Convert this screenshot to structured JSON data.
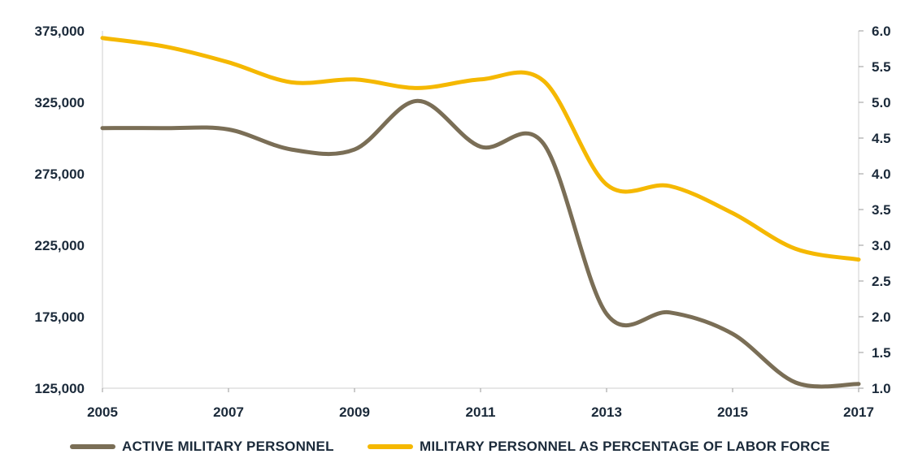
{
  "chart_data": {
    "type": "line",
    "x": [
      2005,
      2006,
      2007,
      2008,
      2009,
      2010,
      2011,
      2012,
      2013,
      2014,
      2015,
      2016,
      2017
    ],
    "x_tick_labels": [
      "2005",
      "2007",
      "2009",
      "2011",
      "2013",
      "2015",
      "2017"
    ],
    "y_left_tick_labels": [
      "375,000",
      "325,000",
      "275,000",
      "225,000",
      "175,000",
      "125,000"
    ],
    "y_left_ticks": [
      375000,
      325000,
      275000,
      225000,
      175000,
      125000
    ],
    "y_right_tick_labels": [
      "6.0",
      "5.5",
      "5.0",
      "4.5",
      "4.0",
      "3.5",
      "3.0",
      "2.5",
      "2.0",
      "1.5",
      "1.0"
    ],
    "y_right_ticks": [
      6.0,
      5.5,
      5.0,
      4.5,
      4.0,
      3.5,
      3.0,
      2.5,
      2.0,
      1.5,
      1.0
    ],
    "ylim_left": [
      125000,
      375000
    ],
    "ylim_right": [
      1.0,
      6.0
    ],
    "grid": false,
    "legend_position": "bottom",
    "series": [
      {
        "name": "ACTIVE MILITARY PERSONNEL",
        "axis": "left",
        "color": "#7a6e56",
        "values": [
          307000,
          307000,
          306000,
          292000,
          292000,
          326000,
          294000,
          296000,
          177000,
          178000,
          163000,
          129000,
          128000
        ]
      },
      {
        "name": "MILITARY PERSONNEL AS PERCENTAGE OF LABOR FORCE",
        "axis": "right",
        "color": "#f5b800",
        "values": [
          5.9,
          5.78,
          5.56,
          5.28,
          5.32,
          5.2,
          5.32,
          5.3,
          3.85,
          3.83,
          3.45,
          2.95,
          2.8
        ]
      }
    ]
  }
}
